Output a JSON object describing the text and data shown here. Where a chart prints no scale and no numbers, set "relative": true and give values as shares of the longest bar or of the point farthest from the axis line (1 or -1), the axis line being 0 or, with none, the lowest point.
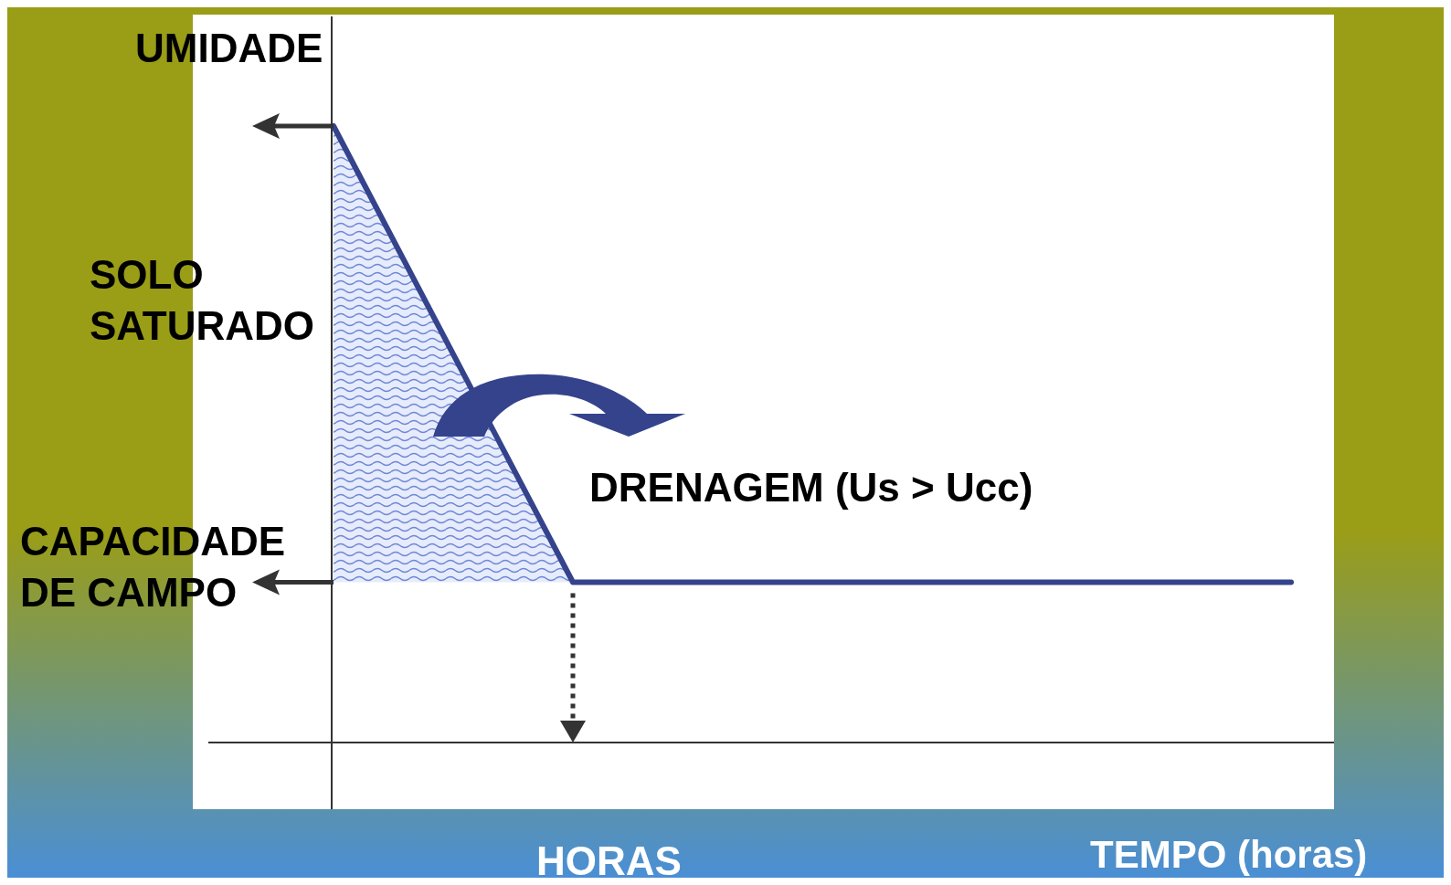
{
  "chart_data": {
    "type": "line",
    "relative": true,
    "ylabel": "UMIDADE",
    "xlabel": "TEMPO (horas)",
    "categories": [
      null,
      null,
      null,
      null,
      null
    ],
    "series": [
      {
        "type": "area",
        "color": "#6f86d8",
        "values": [
          1,
          0.26,
          null,
          null,
          null
        ]
      },
      {
        "color": "#34438c",
        "values": [
          1,
          0.26,
          0.26,
          0.26,
          0.26
        ]
      }
    ],
    "annotations": [
      "SOLO\nSATURADO",
      "CAPACIDADE\nDE CAMPO",
      "DRENAGEM (Us > Ucc)",
      "HORAS"
    ]
  }
}
